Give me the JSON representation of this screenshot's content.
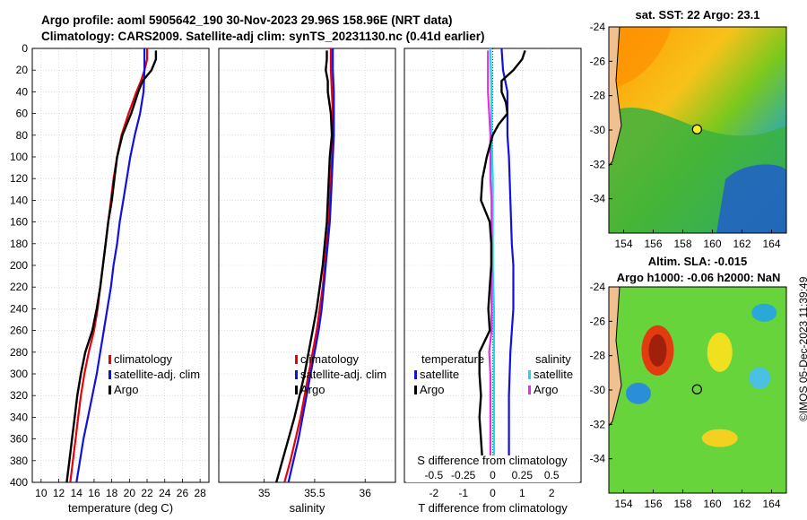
{
  "titles": {
    "line1": "Argo profile: aoml 5905642_190 30-Nov-2023 29.96S 158.96E (NRT data)",
    "line2": "Climatology: CARS2009. Satellite-adj clim: synTS_20231130.nc (0.41d earlier)",
    "sst_map": "sat. SST: 22 Argo: 23.1",
    "sla_map_1": "Altim. SLA: -0.015",
    "sla_map_2": "Argo h1000: -0.06 h2000: NaN"
  },
  "stamp": "©IMOS 05-Dec-2023 11:39:49",
  "colors": {
    "climatology": "#e8000b",
    "satellite": "#1010e0",
    "argo": "#000000",
    "salinity_satellite": "#22d6ee",
    "salinity_argo": "#e030e0",
    "grid": "#c8c8c8"
  },
  "chart_data": [
    {
      "type": "line",
      "id": "temperature",
      "xlabel": "temperature (deg C)",
      "ylabel": "",
      "xlim": [
        9,
        29
      ],
      "ylim": [
        400,
        0
      ],
      "xticks": [
        10,
        12,
        14,
        16,
        18,
        20,
        22,
        24,
        26,
        28
      ],
      "yticks": [
        0,
        20,
        40,
        60,
        80,
        100,
        120,
        140,
        160,
        180,
        200,
        220,
        240,
        260,
        280,
        300,
        320,
        340,
        360,
        380,
        400
      ],
      "legend": [
        "climatology",
        "satellite-adj. clim",
        "Argo"
      ],
      "series": [
        {
          "name": "climatology",
          "depth": [
            0,
            10,
            20,
            30,
            40,
            60,
            80,
            100,
            120,
            140,
            160,
            180,
            200,
            220,
            240,
            260,
            280,
            300,
            320,
            340,
            360,
            380,
            400
          ],
          "values": [
            22.0,
            22.0,
            21.7,
            21.3,
            20.8,
            19.9,
            19.1,
            18.6,
            18.2,
            17.9,
            17.6,
            17.3,
            17.0,
            16.7,
            16.4,
            16.0,
            15.4,
            14.9,
            14.5,
            14.2,
            13.9,
            13.6,
            13.3
          ]
        },
        {
          "name": "satellite-adj. clim",
          "depth": [
            0,
            20,
            40,
            60,
            80,
            100,
            120,
            140,
            160,
            180,
            200,
            220,
            240,
            260,
            280,
            300,
            320,
            340,
            360,
            380,
            400
          ],
          "values": [
            21.7,
            21.7,
            21.6,
            21.2,
            20.6,
            20.1,
            19.7,
            19.3,
            18.9,
            18.6,
            18.2,
            17.9,
            17.5,
            17.1,
            16.7,
            16.3,
            15.8,
            15.3,
            14.8,
            14.4,
            14.0
          ]
        },
        {
          "name": "Argo",
          "depth": [
            2,
            10,
            20,
            30,
            40,
            50,
            60,
            70,
            80,
            100,
            120,
            140,
            160,
            180,
            200,
            220,
            240,
            260,
            280,
            300,
            320,
            340,
            360,
            380,
            400
          ],
          "values": [
            23.0,
            23.0,
            22.5,
            21.5,
            21.0,
            20.6,
            20.2,
            19.7,
            19.2,
            18.6,
            18.3,
            18.0,
            17.6,
            17.3,
            17.0,
            16.7,
            16.3,
            15.8,
            15.0,
            14.5,
            14.1,
            13.8,
            13.5,
            13.2,
            12.9
          ]
        }
      ]
    },
    {
      "type": "line",
      "id": "salinity",
      "xlabel": "salinity",
      "xlim": [
        34.55,
        36.3
      ],
      "ylim": [
        400,
        0
      ],
      "xticks": [
        35,
        35.5,
        36
      ],
      "xticklabels": [
        "35",
        "35.5",
        "36"
      ],
      "yticks": [
        0,
        20,
        40,
        60,
        80,
        100,
        120,
        140,
        160,
        180,
        200,
        220,
        240,
        260,
        280,
        300,
        320,
        340,
        360,
        380,
        400
      ],
      "legend": [
        "climatology",
        "satellite-adj. clim",
        "Argo"
      ],
      "series": [
        {
          "name": "climatology",
          "depth": [
            0,
            20,
            40,
            60,
            80,
            100,
            120,
            140,
            160,
            180,
            200,
            220,
            240,
            260,
            280,
            300,
            320,
            340,
            360,
            380,
            400
          ],
          "values": [
            35.66,
            35.66,
            35.67,
            35.68,
            35.68,
            35.67,
            35.66,
            35.65,
            35.64,
            35.62,
            35.6,
            35.58,
            35.55,
            35.52,
            35.48,
            35.44,
            35.4,
            35.36,
            35.31,
            35.26,
            35.2
          ]
        },
        {
          "name": "satellite-adj. clim",
          "depth": [
            0,
            20,
            40,
            60,
            80,
            100,
            120,
            140,
            160,
            180,
            200,
            220,
            240,
            260,
            280,
            300,
            320,
            340,
            360,
            380,
            400
          ],
          "values": [
            35.68,
            35.68,
            35.69,
            35.69,
            35.69,
            35.68,
            35.67,
            35.66,
            35.65,
            35.63,
            35.61,
            35.59,
            35.57,
            35.54,
            35.5,
            35.46,
            35.42,
            35.38,
            35.34,
            35.29,
            35.24
          ]
        },
        {
          "name": "Argo",
          "depth": [
            2,
            10,
            20,
            30,
            40,
            60,
            80,
            100,
            120,
            140,
            160,
            180,
            200,
            220,
            240,
            260,
            280,
            300,
            320,
            340,
            360,
            380,
            400
          ],
          "values": [
            35.62,
            35.62,
            35.61,
            35.63,
            35.63,
            35.66,
            35.67,
            35.65,
            35.64,
            35.63,
            35.62,
            35.6,
            35.58,
            35.55,
            35.52,
            35.48,
            35.44,
            35.4,
            35.35,
            35.3,
            35.24,
            35.18,
            35.12
          ]
        }
      ]
    },
    {
      "type": "line",
      "id": "difference",
      "xlabel": "T difference from climatology",
      "top_xlabel": "S difference from climatology",
      "xlim": [
        -3,
        3
      ],
      "ylim": [
        400,
        0
      ],
      "xticks": [
        -2,
        -1,
        0,
        1,
        2
      ],
      "xticklabels": [
        "-2",
        "-1",
        "0",
        "1",
        "2"
      ],
      "top_xticks": [
        -0.5,
        -0.25,
        0,
        0.25,
        0.5
      ],
      "top_xticklabels": [
        "-0.5",
        "-0.25",
        "0",
        "0.25",
        "0.5"
      ],
      "top_scale": 4,
      "yticks": [
        0,
        20,
        40,
        60,
        80,
        100,
        120,
        140,
        160,
        180,
        200,
        220,
        240,
        260,
        280,
        300,
        320,
        340,
        360,
        380,
        400
      ],
      "legend_left_title": "temperature",
      "legend_right_title": "salinity",
      "legend": [
        "satellite",
        "Argo",
        "satellite",
        "Argo"
      ],
      "series": [
        {
          "name": "temperature satellite",
          "depth": [
            0,
            20,
            40,
            60,
            80,
            100,
            140,
            180,
            200,
            240,
            280,
            320,
            360,
            400
          ],
          "values": [
            0.3,
            0.35,
            0.5,
            0.5,
            0.5,
            0.55,
            0.6,
            0.65,
            0.7,
            0.7,
            0.6,
            0.55,
            0.55,
            0.55
          ]
        },
        {
          "name": "temperature Argo",
          "depth": [
            2,
            10,
            20,
            30,
            40,
            50,
            60,
            70,
            80,
            90,
            100,
            120,
            140,
            160,
            180,
            200,
            220,
            240,
            260,
            280,
            300,
            320,
            340,
            360,
            380,
            400
          ],
          "values": [
            1.1,
            1.0,
            0.7,
            0.3,
            0.3,
            0.45,
            0.5,
            0.2,
            0.0,
            -0.1,
            -0.2,
            -0.35,
            -0.4,
            -0.1,
            -0.05,
            -0.05,
            -0.1,
            -0.15,
            -0.1,
            -0.45,
            -0.45,
            -0.4,
            -0.45,
            -0.4,
            -0.35,
            -0.35
          ]
        },
        {
          "name": "salinity satellite",
          "depth": [
            0,
            40,
            80,
            120,
            160,
            200,
            240,
            280,
            320,
            360,
            400
          ],
          "values": [
            -0.02,
            -0.01,
            -0.01,
            0.0,
            0.0,
            0.0,
            0.01,
            0.01,
            0.01,
            0.01,
            0.01
          ]
        },
        {
          "name": "salinity Argo",
          "depth": [
            2,
            20,
            40,
            60,
            80,
            100,
            120,
            140,
            160,
            180,
            200,
            220,
            240,
            260,
            280,
            300,
            320,
            340,
            360,
            380,
            400
          ],
          "values": [
            -0.04,
            -0.04,
            -0.04,
            -0.03,
            -0.02,
            -0.02,
            -0.02,
            -0.01,
            -0.01,
            -0.01,
            -0.01,
            -0.01,
            -0.01,
            -0.01,
            -0.03,
            -0.02,
            -0.02,
            -0.02,
            -0.02,
            -0.02,
            -0.02
          ]
        }
      ]
    },
    {
      "type": "heatmap",
      "id": "sst_map",
      "xlim": [
        153,
        165
      ],
      "ylim": [
        -36,
        -24
      ],
      "xticks": [
        154,
        156,
        158,
        160,
        162,
        164
      ],
      "yticks": [
        -24,
        -26,
        -28,
        -30,
        -32,
        -34
      ],
      "marker": {
        "lon": 158.96,
        "lat": -29.96
      }
    },
    {
      "type": "heatmap",
      "id": "sla_map",
      "xlim": [
        153,
        165
      ],
      "ylim": [
        -36,
        -24
      ],
      "xticks": [
        154,
        156,
        158,
        160,
        162,
        164
      ],
      "yticks": [
        -24,
        -26,
        -28,
        -30,
        -32,
        -34
      ],
      "marker": {
        "lon": 158.96,
        "lat": -29.96
      }
    }
  ]
}
